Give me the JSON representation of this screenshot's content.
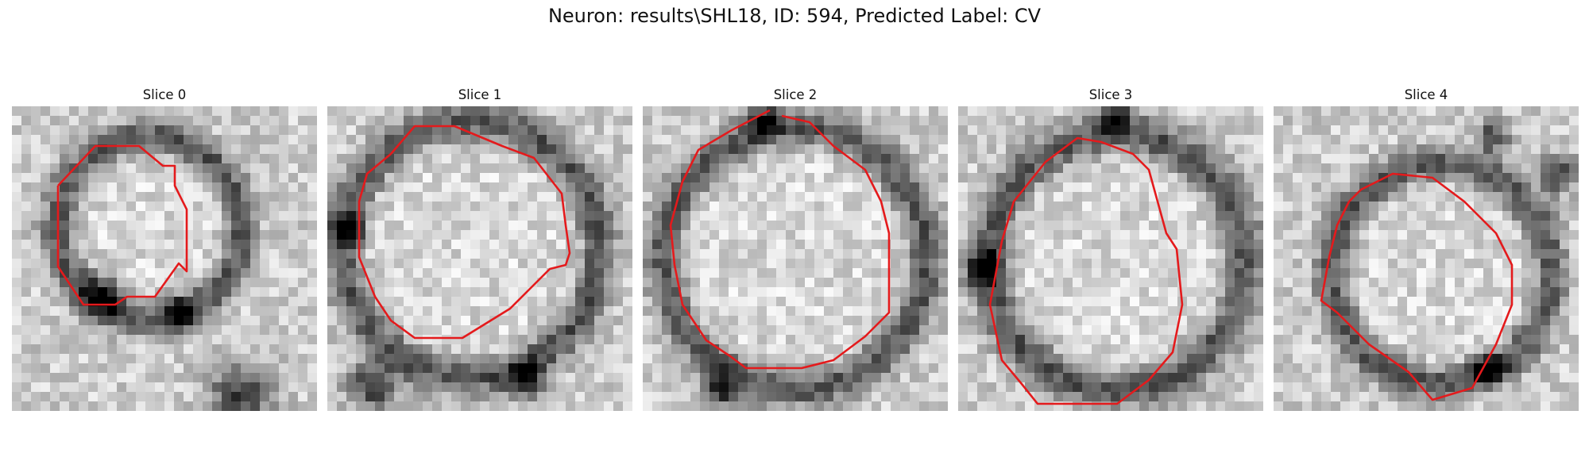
{
  "figure": {
    "title": "Neuron: results\\SHL18, ID: 594, Predicted Label: CV"
  },
  "colors": {
    "contour": "#e41a1c",
    "background": "#ffffff"
  },
  "panels": [
    {
      "title": "Slice 0"
    },
    {
      "title": "Slice 1"
    },
    {
      "title": "Slice 2"
    },
    {
      "title": "Slice 3"
    },
    {
      "title": "Slice 4"
    }
  ]
}
